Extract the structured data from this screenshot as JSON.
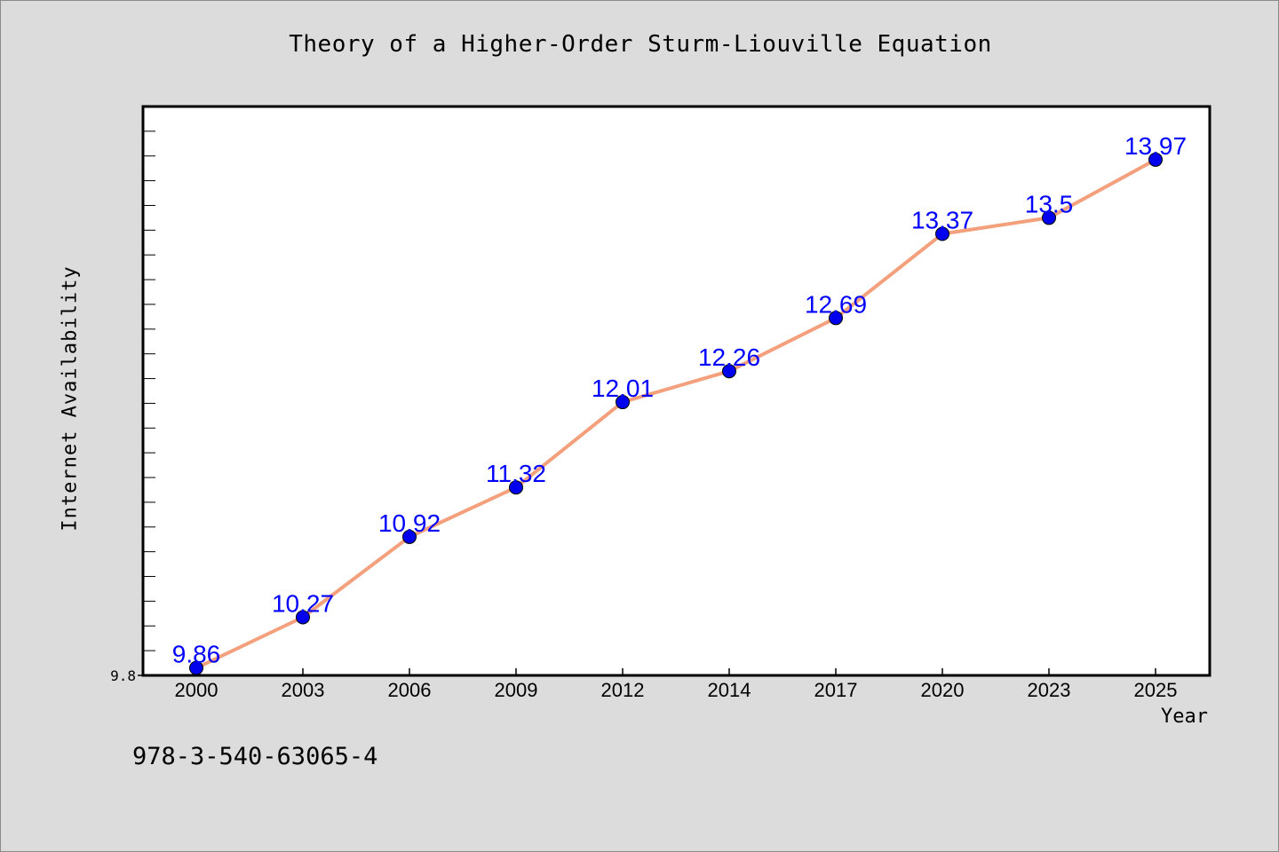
{
  "chart_data": {
    "type": "line",
    "title": "Theory of a Higher-Order Sturm-Liouville Equation",
    "xlabel": "Year",
    "ylabel": "Internet Availability",
    "categories": [
      "2000",
      "2003",
      "2006",
      "2009",
      "2012",
      "2014",
      "2017",
      "2020",
      "2023",
      "2025"
    ],
    "series": [
      {
        "values": [
          9.86,
          10.27,
          10.92,
          11.32,
          12.01,
          12.26,
          12.69,
          13.37,
          13.5,
          13.97
        ],
        "data_labels": [
          "9.86",
          "10.27",
          "10.92",
          "11.32",
          "12.01",
          "12.26",
          "12.69",
          "13.37",
          "13.5",
          "13.97"
        ]
      }
    ],
    "ylim": [
      9.8,
      14.4
    ],
    "yticks": [
      {
        "value": 9.8,
        "label": "9.8"
      }
    ],
    "y_minor_tick_step": 0.2,
    "grid": false,
    "legend": "none",
    "colors": {
      "line": "#f4a07c",
      "marker": "#0000ee",
      "marker_edge": "#000000",
      "data_label": "#0000ff",
      "plot_background": "#ffffff",
      "figure_background": "#dcdcdc"
    }
  },
  "footer": {
    "isbn": "978-3-540-63065-4"
  }
}
